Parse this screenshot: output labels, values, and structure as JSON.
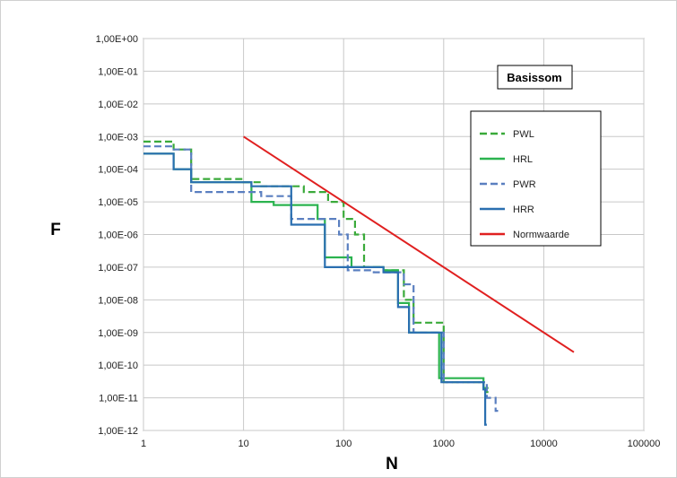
{
  "chart_data": {
    "type": "line",
    "x_scale": "log",
    "y_scale": "log",
    "xlim": [
      1,
      100000
    ],
    "ylim": [
      1e-12,
      1
    ],
    "grid": true,
    "xlabel": "N",
    "ylabel": "F",
    "badge": "Basissom",
    "legend_position": "top-right",
    "x_ticks": [
      "1",
      "10",
      "100",
      "1000",
      "10000",
      "100000"
    ],
    "y_ticks": [
      "1,00E+00",
      "1,00E-01",
      "1,00E-02",
      "1,00E-03",
      "1,00E-04",
      "1,00E-05",
      "1,00E-06",
      "1,00E-07",
      "1,00E-08",
      "1,00E-09",
      "1,00E-10",
      "1,00E-11",
      "1,00E-12"
    ],
    "series": [
      {
        "name": "PWL",
        "color": "#3aaa3a",
        "style": "dashed",
        "step": true,
        "points": [
          [
            1,
            0.0007
          ],
          [
            2,
            0.0007
          ],
          [
            2,
            0.0004
          ],
          [
            3,
            0.0004
          ],
          [
            3,
            5e-05
          ],
          [
            10,
            5e-05
          ],
          [
            10,
            4e-05
          ],
          [
            15,
            4e-05
          ],
          [
            15,
            3e-05
          ],
          [
            40,
            3e-05
          ],
          [
            40,
            2e-05
          ],
          [
            70,
            2e-05
          ],
          [
            70,
            1e-05
          ],
          [
            100,
            1e-05
          ],
          [
            100,
            3e-06
          ],
          [
            130,
            3e-06
          ],
          [
            130,
            1e-06
          ],
          [
            160,
            1e-06
          ],
          [
            160,
            1e-07
          ],
          [
            250,
            1e-07
          ],
          [
            250,
            8e-08
          ],
          [
            400,
            8e-08
          ],
          [
            400,
            1e-08
          ],
          [
            500,
            1e-08
          ],
          [
            500,
            2e-09
          ],
          [
            1000,
            2e-09
          ],
          [
            1000,
            3e-11
          ],
          [
            2500,
            3e-11
          ],
          [
            2500,
            1.5e-11
          ],
          [
            2800,
            1.5e-11
          ]
        ]
      },
      {
        "name": "HRL",
        "color": "#2bb34f",
        "style": "solid",
        "step": true,
        "points": [
          [
            1,
            0.0003
          ],
          [
            2,
            0.0003
          ],
          [
            2,
            0.0001
          ],
          [
            3,
            0.0001
          ],
          [
            3,
            4e-05
          ],
          [
            12,
            4e-05
          ],
          [
            12,
            1e-05
          ],
          [
            20,
            1e-05
          ],
          [
            20,
            8e-06
          ],
          [
            55,
            8e-06
          ],
          [
            55,
            3e-06
          ],
          [
            65,
            3e-06
          ],
          [
            65,
            2e-07
          ],
          [
            120,
            2e-07
          ],
          [
            120,
            1e-07
          ],
          [
            250,
            1e-07
          ],
          [
            250,
            8e-08
          ],
          [
            350,
            8e-08
          ],
          [
            350,
            8e-09
          ],
          [
            450,
            8e-09
          ],
          [
            450,
            1e-09
          ],
          [
            900,
            1e-09
          ],
          [
            900,
            4e-11
          ],
          [
            2500,
            4e-11
          ],
          [
            2500,
            2e-11
          ],
          [
            2800,
            2e-11
          ]
        ]
      },
      {
        "name": "PWR",
        "color": "#5a7fc0",
        "style": "dashed",
        "step": true,
        "points": [
          [
            1,
            0.0005
          ],
          [
            2,
            0.0005
          ],
          [
            2,
            0.0004
          ],
          [
            3,
            0.0004
          ],
          [
            3,
            2e-05
          ],
          [
            15,
            2e-05
          ],
          [
            15,
            1.5e-05
          ],
          [
            30,
            1.5e-05
          ],
          [
            30,
            3e-06
          ],
          [
            90,
            3e-06
          ],
          [
            90,
            1e-06
          ],
          [
            110,
            1e-06
          ],
          [
            110,
            8e-08
          ],
          [
            200,
            8e-08
          ],
          [
            200,
            7e-08
          ],
          [
            400,
            7e-08
          ],
          [
            400,
            3e-08
          ],
          [
            500,
            3e-08
          ],
          [
            500,
            1e-09
          ],
          [
            1000,
            1e-09
          ],
          [
            1000,
            3e-11
          ],
          [
            2700,
            3e-11
          ],
          [
            2700,
            1e-11
          ],
          [
            3300,
            1e-11
          ],
          [
            3300,
            4e-12
          ],
          [
            3500,
            4e-12
          ]
        ]
      },
      {
        "name": "HRR",
        "color": "#2a6fb0",
        "style": "solid",
        "step": true,
        "points": [
          [
            1,
            0.0003
          ],
          [
            2,
            0.0003
          ],
          [
            2,
            0.0001
          ],
          [
            3,
            0.0001
          ],
          [
            3,
            4e-05
          ],
          [
            12,
            4e-05
          ],
          [
            12,
            3e-05
          ],
          [
            30,
            3e-05
          ],
          [
            30,
            2e-06
          ],
          [
            65,
            2e-06
          ],
          [
            65,
            1e-07
          ],
          [
            250,
            1e-07
          ],
          [
            250,
            7e-08
          ],
          [
            350,
            7e-08
          ],
          [
            350,
            6e-09
          ],
          [
            450,
            6e-09
          ],
          [
            450,
            1e-09
          ],
          [
            950,
            1e-09
          ],
          [
            950,
            3e-11
          ],
          [
            2500,
            3e-11
          ],
          [
            2500,
            1.8e-11
          ],
          [
            2600,
            1.8e-11
          ],
          [
            2600,
            1.5e-12
          ],
          [
            2700,
            1.5e-12
          ]
        ]
      },
      {
        "name": "Normwaarde",
        "color": "#e02020",
        "style": "solid",
        "step": false,
        "points": [
          [
            10,
            0.001
          ],
          [
            20000,
            2.5e-10
          ]
        ]
      }
    ]
  }
}
